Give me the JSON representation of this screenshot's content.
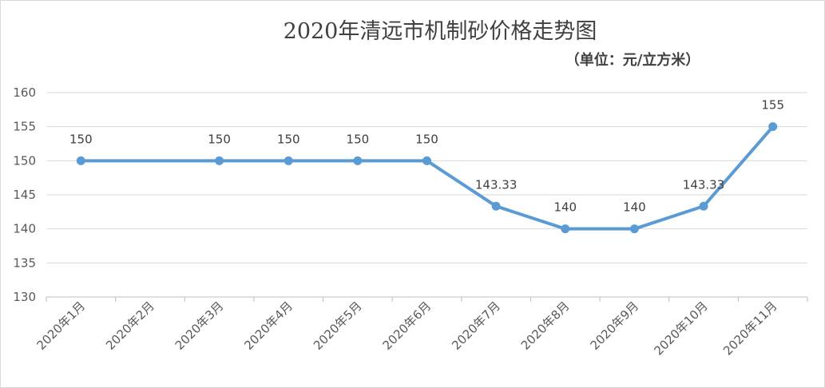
{
  "chart_data": {
    "type": "line",
    "title": "2020年清远市机制砂价格走势图",
    "subtitle": "（单位：元/立方米）",
    "categories": [
      "2020年1月",
      "2020年2月",
      "2020年3月",
      "2020年4月",
      "2020年5月",
      "2020年6月",
      "2020年7月",
      "2020年8月",
      "2020年9月",
      "2020年10月",
      "2020年11月"
    ],
    "series": [
      {
        "values": [
          150,
          null,
          150,
          150,
          150,
          150,
          143.33,
          140,
          140,
          143.33,
          155
        ],
        "labels": [
          "150",
          "",
          "150",
          "150",
          "150",
          "150",
          "143.33",
          "140",
          "140",
          "143.33",
          "155"
        ],
        "color": "#5b9bd5"
      }
    ],
    "ylim": [
      130,
      160
    ],
    "yticks": [
      "130",
      "135",
      "140",
      "145",
      "150",
      "155",
      "160"
    ],
    "grid": true,
    "legend": "none"
  }
}
